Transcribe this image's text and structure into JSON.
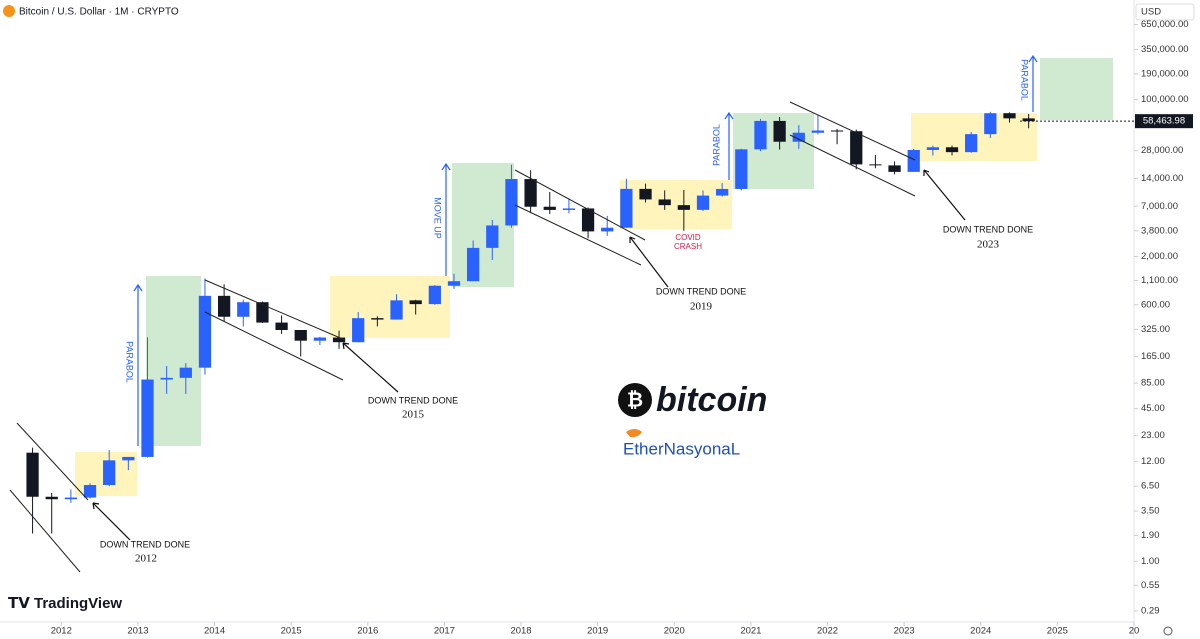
{
  "chart_data": {
    "type": "candlestick",
    "title": "Bitcoin / U.S. Dollar · 1M · CRYPTO",
    "currency": "USD",
    "log_scale": true,
    "up_color": "#2962ff",
    "down_color": "#131722",
    "xlim": [
      2011.2,
      2026.0
    ],
    "xticks": [
      2012,
      2013,
      2014,
      2015,
      2016,
      2017,
      2018,
      2019,
      2020,
      2021,
      2022,
      2023,
      2024,
      2025,
      {
        "value": 2026,
        "label": "20"
      }
    ],
    "ylim": [
      0.22,
      1200000
    ],
    "yticks": [
      {
        "value": 0.29,
        "label": "0.29"
      },
      {
        "value": 0.55,
        "label": "0.55"
      },
      {
        "value": 1,
        "label": "1.00"
      },
      {
        "value": 1.9,
        "label": "1.90"
      },
      {
        "value": 3.5,
        "label": "3.50"
      },
      {
        "value": 6.5,
        "label": "6.50"
      },
      {
        "value": 12,
        "label": "12.00"
      },
      {
        "value": 23,
        "label": "23.00"
      },
      {
        "value": 45,
        "label": "45.00"
      },
      {
        "value": 85,
        "label": "85.00"
      },
      {
        "value": 165,
        "label": "165.00"
      },
      {
        "value": 325,
        "label": "325.00"
      },
      {
        "value": 600,
        "label": "600.00"
      },
      {
        "value": 1100,
        "label": "1,100.00"
      },
      {
        "value": 2000,
        "label": "2,000.00"
      },
      {
        "value": 3800,
        "label": "3,800.00"
      },
      {
        "value": 7000,
        "label": "7,000.00"
      },
      {
        "value": 14000,
        "label": "14,000.00"
      },
      {
        "value": 28000,
        "label": "28,000.00"
      },
      {
        "value": 100000,
        "label": "100,000.00"
      },
      {
        "value": 190000,
        "label": "190,000.00"
      },
      {
        "value": 350000,
        "label": "350,000.00"
      },
      {
        "value": 650000,
        "label": "650,000.00"
      }
    ],
    "last_price": {
      "value": 58463.98,
      "label": "58,463.98"
    },
    "x": [
      2011.5,
      2011.75,
      2012,
      2012.25,
      2012.5,
      2012.75,
      2013,
      2013.25,
      2013.5,
      2013.75,
      2014,
      2014.25,
      2014.5,
      2014.75,
      2015,
      2015.25,
      2015.5,
      2015.75,
      2016,
      2016.25,
      2016.5,
      2016.75,
      2017,
      2017.25,
      2017.5,
      2017.75,
      2018,
      2018.25,
      2018.5,
      2018.75,
      2019,
      2019.25,
      2019.5,
      2019.75,
      2020,
      2020.25,
      2020.5,
      2020.75,
      2021,
      2021.25,
      2021.5,
      2021.75,
      2022,
      2022.25,
      2022.5,
      2022.75,
      2023,
      2023.25,
      2023.5,
      2023.75,
      2024,
      2024.25,
      2024.5
    ],
    "open": [
      15,
      5,
      4.7,
      4.9,
      6.7,
      12.4,
      13.5,
      93,
      97,
      125,
      750,
      445,
      640,
      385,
      320,
      245,
      265,
      236,
      430,
      415,
      670,
      610,
      965,
      1080,
      2480,
      4340,
      13800,
      6920,
      6390,
      6630,
      3740,
      4100,
      10800,
      8300,
      7200,
      6400,
      9140,
      10780,
      28950,
      58800,
      35000,
      43800,
      46300,
      45500,
      19900,
      19400,
      16500,
      28500,
      30500,
      27000,
      42300,
      71300,
      62700
    ],
    "high": [
      17,
      5.5,
      6,
      7,
      16,
      13.5,
      266,
      130,
      140,
      1160,
      1000,
      680,
      650,
      460,
      320,
      270,
      315,
      500,
      450,
      780,
      680,
      980,
      1300,
      2980,
      4980,
      19700,
      17200,
      9990,
      8500,
      6800,
      5500,
      13900,
      12300,
      10400,
      10500,
      10400,
      12470,
      29300,
      61800,
      64800,
      52900,
      69000,
      48200,
      47400,
      25200,
      21400,
      29200,
      31800,
      31800,
      44700,
      73800,
      72800,
      70000
    ],
    "low": [
      2,
      2,
      4.3,
      4.8,
      6.5,
      9.7,
      13.3,
      65,
      65,
      105,
      400,
      350,
      380,
      290,
      165,
      220,
      200,
      235,
      350,
      415,
      470,
      600,
      890,
      1080,
      1830,
      4100,
      5900,
      5770,
      5880,
      3150,
      3350,
      4100,
      7700,
      6400,
      3800,
      6200,
      8900,
      10400,
      27700,
      28800,
      29300,
      42000,
      32900,
      17600,
      18100,
      15500,
      16500,
      24800,
      24900,
      26600,
      38500,
      56500,
      49000
    ],
    "close": [
      5,
      4.7,
      4.9,
      6.7,
      12.4,
      13.5,
      93,
      97,
      125,
      750,
      445,
      640,
      385,
      320,
      245,
      265,
      236,
      430,
      415,
      670,
      610,
      965,
      1080,
      2480,
      4340,
      13800,
      6920,
      6390,
      6630,
      3740,
      4100,
      10800,
      8300,
      7200,
      6400,
      9140,
      10780,
      28950,
      58800,
      35000,
      43800,
      46300,
      45500,
      19900,
      19400,
      16500,
      28500,
      30500,
      27000,
      42300,
      71300,
      62700,
      58463.98
    ],
    "annotations": [
      "DOWN TREND DONE",
      "2012",
      "DOWN TREND DONE",
      "2015",
      "DOWN TREND DONE",
      "2019",
      "DOWN TREND DONE",
      "2023",
      "COVID",
      "CRASH",
      "PARABOL",
      "MOVE UP",
      "PARABOL",
      "PARABOL"
    ],
    "logo": "bitcoin",
    "watermark": "EtherNasyonaL",
    "brand": "TradingView"
  }
}
